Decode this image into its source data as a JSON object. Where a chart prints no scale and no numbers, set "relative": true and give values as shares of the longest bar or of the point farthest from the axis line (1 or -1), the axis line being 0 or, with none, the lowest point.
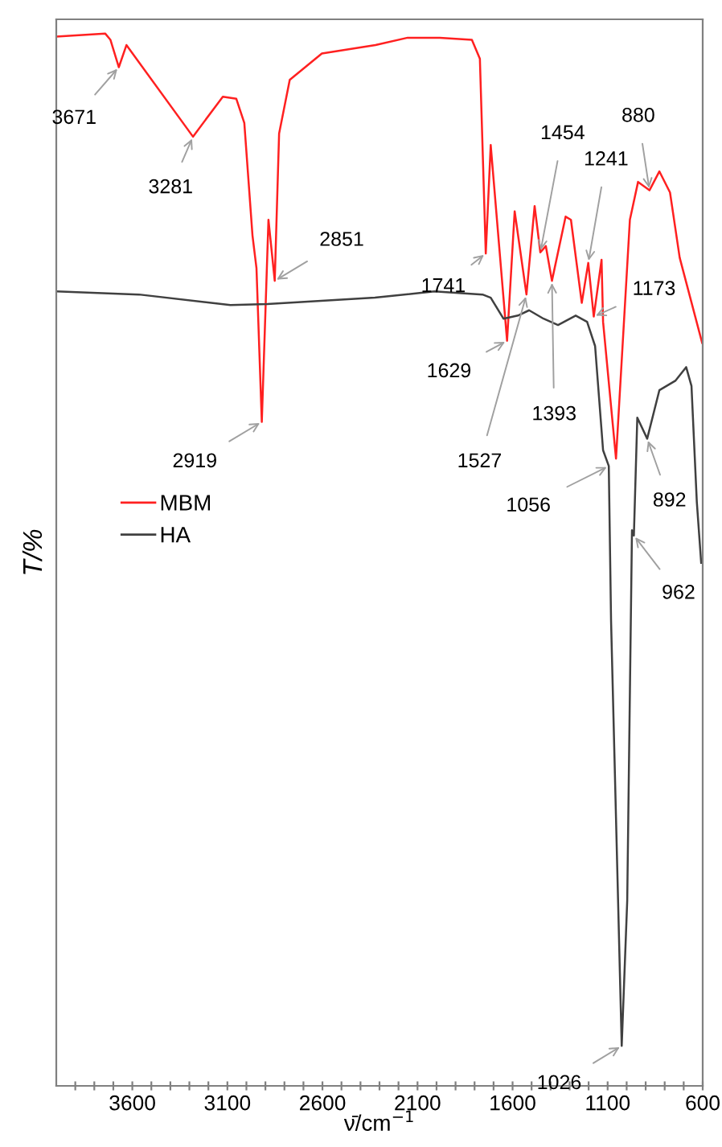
{
  "chart_data": {
    "type": "line",
    "xlabel": "ν̄/cm$^{−1}$",
    "ylabel": "T/%",
    "relative": true,
    "legend": "center left",
    "grid": false,
    "tick_labels": "x",
    "xlim": [
      4000,
      600
    ],
    "xticks": [
      {
        "value": 3900,
        "label": null
      },
      {
        "value": 3800,
        "label": null
      },
      {
        "value": 3700,
        "label": null
      },
      3600,
      {
        "value": 3500,
        "label": null
      },
      {
        "value": 3400,
        "label": null
      },
      {
        "value": 3300,
        "label": null
      },
      {
        "value": 3200,
        "label": null
      },
      3100,
      {
        "value": 3000,
        "label": null
      },
      {
        "value": 2900,
        "label": null
      },
      {
        "value": 2800,
        "label": null
      },
      {
        "value": 2700,
        "label": null
      },
      2600,
      {
        "value": 2500,
        "label": null
      },
      {
        "value": 2400,
        "label": null
      },
      {
        "value": 2300,
        "label": null
      },
      {
        "value": 2200,
        "label": null
      },
      2100,
      {
        "value": 2000,
        "label": null
      },
      {
        "value": 1900,
        "label": null
      },
      {
        "value": 1800,
        "label": null
      },
      {
        "value": 1700,
        "label": null
      },
      1600,
      {
        "value": 1500,
        "label": null
      },
      {
        "value": 1400,
        "label": null
      },
      {
        "value": 1300,
        "label": null
      },
      {
        "value": 1200,
        "label": null
      },
      1100,
      {
        "value": 1000,
        "label": null
      },
      {
        "value": 900,
        "label": null
      },
      {
        "value": 800,
        "label": null
      },
      {
        "value": 700,
        "label": null
      },
      600
    ],
    "series": [
      {
        "name": "MBM",
        "color": "#ff2020",
        "x": [
          4000,
          3743,
          3715,
          3671,
          3631,
          3281,
          3124,
          3053,
          3011,
          2968,
          2947,
          2919,
          2884,
          2851,
          2828,
          2772,
          2603,
          2321,
          2152,
          1983,
          1814,
          1772,
          1741,
          1715,
          1629,
          1589,
          1527,
          1484,
          1454,
          1425,
          1393,
          1321,
          1293,
          1236,
          1202,
          1173,
          1132,
          1124,
          1056,
          983,
          940,
          880,
          828,
          772,
          721,
          603
        ],
        "values": [
          0.997,
          1.0,
          0.994,
          0.968,
          0.989,
          0.902,
          0.94,
          0.938,
          0.915,
          0.808,
          0.777,
          0.631,
          0.823,
          0.765,
          0.905,
          0.956,
          0.981,
          0.989,
          0.996,
          0.996,
          0.994,
          0.976,
          0.791,
          0.894,
          0.708,
          0.831,
          0.752,
          0.836,
          0.792,
          0.798,
          0.765,
          0.826,
          0.823,
          0.744,
          0.782,
          0.731,
          0.785,
          0.726,
          0.596,
          0.823,
          0.859,
          0.851,
          0.869,
          0.849,
          0.787,
          0.706
        ]
      },
      {
        "name": "HA",
        "color": "#404040",
        "x": [
          4000,
          3565,
          3084,
          2890,
          2324,
          2011,
          1758,
          1715,
          1648,
          1572,
          1513,
          1437,
          1361,
          1268,
          1208,
          1166,
          1124,
          1094,
          1082,
          1026,
          997,
          972,
          962,
          944,
          892,
          828,
          744,
          687,
          659,
          631,
          608
        ],
        "values": [
          0.755,
          0.752,
          0.742,
          0.743,
          0.749,
          0.755,
          0.752,
          0.749,
          0.729,
          0.732,
          0.737,
          0.729,
          0.723,
          0.732,
          0.726,
          0.703,
          0.604,
          0.589,
          0.442,
          0.038,
          0.176,
          0.528,
          0.523,
          0.635,
          0.615,
          0.661,
          0.67,
          0.683,
          0.665,
          0.555,
          0.497
        ]
      }
    ],
    "annotations": [
      {
        "text": "3671",
        "x": 3671,
        "y": 0.968
      },
      {
        "text": "3281",
        "x": 3281,
        "y": 0.902
      },
      {
        "text": "2919",
        "x": 2919,
        "y": 0.631
      },
      {
        "text": "2851",
        "x": 2851,
        "y": 0.765
      },
      {
        "text": "1741",
        "x": 1741,
        "y": 0.791
      },
      {
        "text": "1629",
        "x": 1629,
        "y": 0.708
      },
      {
        "text": "1527",
        "x": 1527,
        "y": 0.752
      },
      {
        "text": "1454",
        "x": 1454,
        "y": 0.792
      },
      {
        "text": "1393",
        "x": 1393,
        "y": 0.765
      },
      {
        "text": "1241",
        "x": 1202,
        "y": 0.782
      },
      {
        "text": "1173",
        "x": 1173,
        "y": 0.731
      },
      {
        "text": "880",
        "x": 880,
        "y": 0.851
      },
      {
        "text": "1056",
        "x": 1094,
        "y": 0.589
      },
      {
        "text": "892",
        "x": 892,
        "y": 0.615
      },
      {
        "text": "962",
        "x": 962,
        "y": 0.523
      },
      {
        "text": "1026",
        "x": 1026,
        "y": 0.038
      }
    ]
  }
}
